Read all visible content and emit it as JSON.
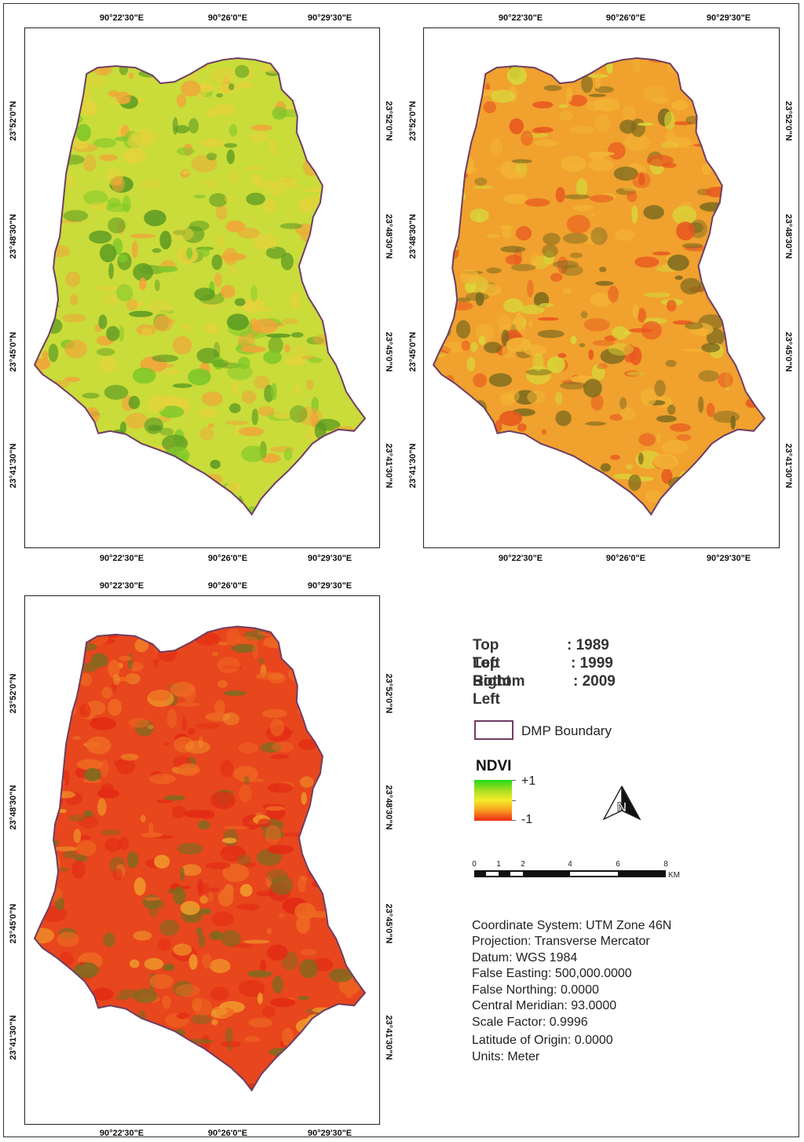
{
  "maps": [
    {
      "name": "map-1989",
      "top_labels": [
        "90°22'30\"E",
        "90°26'0\"E",
        "90°29'30\"E"
      ],
      "bottom_labels": [
        "90°22'30\"E",
        "90°26'0\"E",
        "90°29'30\"E"
      ],
      "left_labels": [
        "23°52'0\"N",
        "23°48'30\"N",
        "23°45'0\"N",
        "23°41'30\"N"
      ],
      "right_labels": [
        "23°52'0\"N",
        "23°48'30\"N",
        "23°45'0\"N",
        "23°41'30\"N"
      ],
      "palette": {
        "base": "#c9dc3a",
        "north": "#e6d23c",
        "patch": "#f2a33a",
        "dark": "#5a9a22",
        "green": "#7cc829"
      }
    },
    {
      "name": "map-1999",
      "top_labels": [
        "90°22'30\"E",
        "90°26'0\"E",
        "90°29'30\"E"
      ],
      "bottom_labels": [
        "90°22'30\"E",
        "90°26'0\"E",
        "90°29'30\"E"
      ],
      "left_labels": [
        "23°52'0\"N",
        "23°48'30\"N",
        "23°45'0\"N",
        "23°41'30\"N"
      ],
      "right_labels": [
        "23°52'0\"N",
        "23°48'30\"N",
        "23°45'0\"N",
        "23°41'30\"N"
      ],
      "palette": {
        "base": "#f0a12e",
        "north": "#f3b535",
        "patch": "#e8561f",
        "dark": "#7a6a1e",
        "green": "#d8d83a"
      }
    },
    {
      "name": "map-2009",
      "top_labels": [
        "90°22'30\"E",
        "90°26'0\"E",
        "90°29'30\"E"
      ],
      "bottom_labels": [
        "90°22'30\"E",
        "90°26'0\"E",
        "90°29'30\"E"
      ],
      "left_labels": [
        "23°52'0\"N",
        "23°48'30\"N",
        "23°45'0\"N",
        "23°41'30\"N"
      ],
      "right_labels": [
        "23°52'0\"N",
        "23°48'30\"N",
        "23°45'0\"N",
        "23°41'30\"N"
      ],
      "palette": {
        "base": "#e8461d",
        "north": "#ee6a22",
        "patch": "#e22a14",
        "dark": "#7d6b1f",
        "green": "#f0a02c"
      }
    }
  ],
  "legend": {
    "years": [
      {
        "key": "Top Left",
        "value": ": 1989"
      },
      {
        "key": "Top Right",
        "value": ": 1999"
      },
      {
        "key": "Bottom Left",
        "value": ": 2009"
      }
    ],
    "boundary_label": "DMP Boundary",
    "boundary_color": "#6e3e63",
    "ndvi_title": "NDVI",
    "ndvi_max": "+1",
    "ndvi_min": "-1",
    "ndvi_colors": [
      "#21d91b",
      "#f6ec2a",
      "#ef2a16"
    ]
  },
  "north_arrow": {
    "letter": "N"
  },
  "scale_bar": {
    "ticks": [
      "0",
      "1",
      "2",
      "4",
      "6",
      "8"
    ],
    "unit": "KM"
  },
  "projection_info": [
    "Coordinate System: UTM Zone 46N",
    "Projection: Transverse Mercator",
    "Datum: WGS 1984",
    "False Easting: 500,000.0000",
    "False Northing: 0.0000",
    "Central Meridian: 93.0000",
    "Scale Factor: 0.9996",
    "Latitude of Origin: 0.0000",
    "Units: Meter"
  ]
}
